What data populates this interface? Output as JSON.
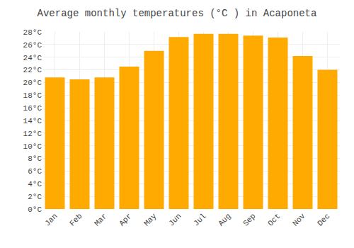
{
  "chart_data": {
    "type": "bar",
    "title": "Average monthly temperatures (°C ) in Acaponeta",
    "categories": [
      "Jan",
      "Feb",
      "Mar",
      "Apr",
      "May",
      "Jun",
      "Jul",
      "Aug",
      "Sep",
      "Oct",
      "Nov",
      "Dec"
    ],
    "values": [
      20.8,
      20.5,
      20.8,
      22.5,
      25.0,
      27.2,
      27.7,
      27.7,
      27.4,
      27.1,
      24.2,
      22.0
    ],
    "color": "#FFAA00",
    "ylim": [
      0,
      28
    ],
    "yticks": [
      {
        "value": 0,
        "label": "0°C"
      },
      {
        "value": 2,
        "label": "2°C"
      },
      {
        "value": 4,
        "label": "4°C"
      },
      {
        "value": 6,
        "label": "6°C"
      },
      {
        "value": 8,
        "label": "8°C"
      },
      {
        "value": 10,
        "label": "10°C"
      },
      {
        "value": 12,
        "label": "12°C"
      },
      {
        "value": 14,
        "label": "14°C"
      },
      {
        "value": 16,
        "label": "16°C"
      },
      {
        "value": 18,
        "label": "18°C"
      },
      {
        "value": 20,
        "label": "20°C"
      },
      {
        "value": 22,
        "label": "22°C"
      },
      {
        "value": 24,
        "label": "24°C"
      },
      {
        "value": 26,
        "label": "26°C"
      },
      {
        "value": 28,
        "label": "28°C"
      }
    ],
    "grid": true
  }
}
